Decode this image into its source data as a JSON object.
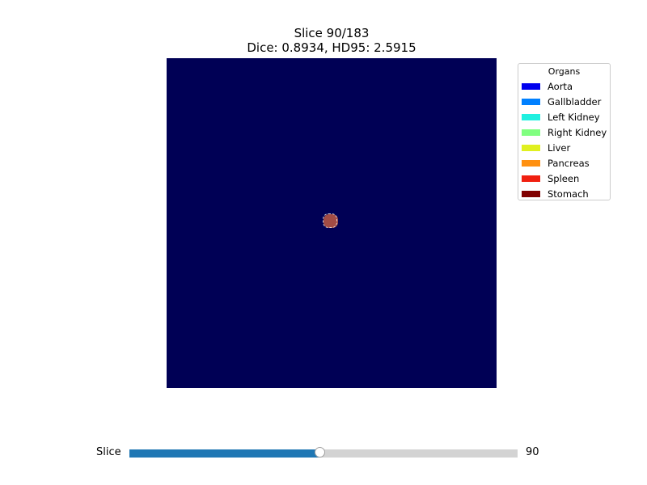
{
  "title": {
    "line1": "Slice 90/183",
    "line2": "Dice: 0.8934, HD95: 2.5915"
  },
  "viewer": {
    "background_color": "#000055",
    "overlay_color": "#a24c45"
  },
  "legend": {
    "title": "Organs",
    "items": [
      {
        "label": "Aorta",
        "color": "#0000ee"
      },
      {
        "label": "Gallbladder",
        "color": "#0080ff"
      },
      {
        "label": "Left Kidney",
        "color": "#20f0e0"
      },
      {
        "label": "Right Kidney",
        "color": "#80ff80"
      },
      {
        "label": "Liver",
        "color": "#e0f020"
      },
      {
        "label": "Pancreas",
        "color": "#ff9010"
      },
      {
        "label": "Spleen",
        "color": "#f02010"
      },
      {
        "label": "Stomach",
        "color": "#800000"
      }
    ]
  },
  "slider": {
    "label": "Slice",
    "value": 90,
    "value_text": "90",
    "max": 183,
    "fill_color": "#1f77b4",
    "track_color": "#d3d3d3"
  }
}
